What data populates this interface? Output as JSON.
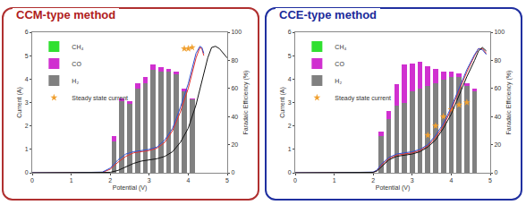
{
  "chart_data": [
    {
      "type": "bar",
      "title": "CCM-type method",
      "x_label": "Potential (V)",
      "y_label": "Current (A)",
      "y2_label": "Faradaic Efficiency (%)",
      "xlim": [
        0,
        5
      ],
      "xticks": [
        0,
        1,
        2,
        3,
        4,
        5
      ],
      "ylim": [
        0,
        6
      ],
      "yticks": [
        0,
        1,
        2,
        3,
        4,
        5,
        6
      ],
      "y2lim": [
        0,
        100
      ],
      "y2ticks": [
        0,
        20,
        40,
        60,
        80,
        100
      ],
      "stacked": true,
      "grid": false,
      "legend": "top-left",
      "series": [
        {
          "name": "Steady state current",
          "type": "scatter",
          "marker": "star",
          "color": "#f0a030",
          "x": [
            3.9,
            4.0,
            4.1
          ],
          "values": [
            5.3,
            5.3,
            5.35
          ]
        },
        {
          "type": "line",
          "color": "#e03030",
          "x": [
            0,
            1,
            1.8,
            2.0,
            2.2,
            2.4,
            2.6,
            2.8,
            3.0,
            3.2,
            3.4,
            3.6,
            3.8,
            4.0,
            4.1,
            4.2,
            4.3,
            4.35,
            4.4
          ],
          "values": [
            0,
            0,
            0.02,
            0.15,
            0.45,
            0.7,
            0.85,
            0.9,
            0.95,
            1.05,
            1.3,
            1.8,
            2.6,
            3.6,
            4.3,
            4.9,
            5.35,
            5.3,
            5.0
          ]
        },
        {
          "type": "line",
          "color": "#3050d0",
          "x": [
            0,
            1,
            1.8,
            2.0,
            2.2,
            2.4,
            2.6,
            2.8,
            3.0,
            3.2,
            3.4,
            3.6,
            3.8,
            4.0,
            4.1,
            4.2,
            4.3,
            4.35,
            4.4
          ],
          "values": [
            0,
            0,
            0.03,
            0.2,
            0.55,
            0.8,
            0.9,
            0.95,
            1.0,
            1.1,
            1.4,
            1.9,
            2.8,
            3.8,
            4.5,
            5.1,
            5.4,
            5.35,
            5.1
          ]
        },
        {
          "type": "line",
          "color": "#111111",
          "x": [
            0,
            1,
            2.0,
            2.2,
            2.4,
            2.6,
            2.8,
            3.0,
            3.2,
            3.4,
            3.6,
            3.8,
            4.0,
            4.2,
            4.4,
            4.5,
            4.6,
            4.7,
            4.8,
            5.0
          ],
          "values": [
            0,
            0,
            0.02,
            0.1,
            0.25,
            0.4,
            0.5,
            0.55,
            0.6,
            0.7,
            0.9,
            1.3,
            1.9,
            2.9,
            4.2,
            4.9,
            5.35,
            5.4,
            5.3,
            4.9
          ]
        },
        {
          "name": "H₂",
          "type": "bar",
          "axis": "y2",
          "color": "#808080",
          "x": [
            2.1,
            2.3,
            2.5,
            2.7,
            2.9,
            3.1,
            3.3,
            3.5,
            3.7,
            3.9,
            4.1
          ],
          "values": [
            22,
            51,
            49,
            60,
            64,
            73,
            72,
            72,
            70,
            58,
            52
          ]
        },
        {
          "name": "CO",
          "type": "bar",
          "axis": "y2",
          "color": "#d030d0",
          "x": [
            2.1,
            2.3,
            2.5,
            2.7,
            2.9,
            3.1,
            3.3,
            3.5,
            3.7,
            3.9,
            4.1
          ],
          "values": [
            4,
            2,
            2,
            4,
            4,
            4,
            3,
            2,
            2,
            2,
            1
          ]
        },
        {
          "name": "CH₄",
          "type": "bar",
          "axis": "y2",
          "color": "#30e030",
          "x": [
            2.1,
            2.3,
            2.5,
            2.7,
            2.9,
            3.1,
            3.3,
            3.5,
            3.7,
            3.9,
            4.1
          ],
          "values": [
            0,
            0,
            0,
            0,
            0,
            0,
            0,
            0,
            0,
            0,
            0
          ]
        }
      ]
    },
    {
      "type": "bar",
      "title": "CCE-type method",
      "x_label": "Potential (V)",
      "y_label": "Current (A)",
      "y2_label": "Faradaic Efficiency (%)",
      "xlim": [
        0,
        5
      ],
      "xticks": [
        0,
        1,
        2,
        3,
        4,
        5
      ],
      "ylim": [
        0,
        6
      ],
      "yticks": [
        0,
        1,
        2,
        3,
        4,
        5,
        6
      ],
      "y2lim": [
        0,
        100
      ],
      "y2ticks": [
        0,
        20,
        40,
        60,
        80,
        100
      ],
      "stacked": true,
      "grid": false,
      "legend": "top-left",
      "series": [
        {
          "name": "Steady state current",
          "type": "scatter",
          "marker": "star",
          "color": "#f0a030",
          "x": [
            3.4,
            3.6,
            3.8,
            4.0,
            4.2,
            4.4
          ],
          "values": [
            1.6,
            2.0,
            2.4,
            2.7,
            2.9,
            3.0
          ]
        },
        {
          "type": "line",
          "color": "#e03030",
          "x": [
            0,
            1,
            2.0,
            2.1,
            2.2,
            2.4,
            2.6,
            2.8,
            3.0,
            3.2,
            3.4,
            3.6,
            3.8,
            4.0,
            4.2,
            4.4,
            4.6,
            4.7,
            4.8,
            4.9
          ],
          "values": [
            0,
            0,
            0.02,
            0.1,
            0.3,
            0.6,
            0.75,
            0.8,
            0.85,
            0.95,
            1.15,
            1.5,
            2.0,
            2.7,
            3.5,
            4.3,
            5.0,
            5.3,
            5.3,
            5.1
          ]
        },
        {
          "type": "line",
          "color": "#3050d0",
          "x": [
            0,
            1,
            2.0,
            2.1,
            2.2,
            2.4,
            2.6,
            2.8,
            3.0,
            3.2,
            3.4,
            3.6,
            3.8,
            4.0,
            4.2,
            4.4,
            4.6,
            4.7,
            4.8,
            4.9
          ],
          "values": [
            0,
            0,
            0.03,
            0.12,
            0.35,
            0.65,
            0.8,
            0.85,
            0.9,
            1.0,
            1.2,
            1.6,
            2.1,
            2.8,
            3.6,
            4.4,
            5.05,
            5.3,
            5.25,
            5.05
          ]
        },
        {
          "type": "line",
          "color": "#111111",
          "x": [
            0,
            1,
            2.0,
            2.1,
            2.2,
            2.4,
            2.6,
            2.8,
            3.0,
            3.2,
            3.4,
            3.6,
            3.8,
            4.0,
            4.2,
            4.4,
            4.6,
            4.7,
            4.8,
            4.9
          ],
          "values": [
            0,
            0,
            0.02,
            0.08,
            0.25,
            0.55,
            0.7,
            0.75,
            0.8,
            0.9,
            1.1,
            1.4,
            1.9,
            2.5,
            3.3,
            4.1,
            4.8,
            5.2,
            5.35,
            5.2
          ]
        },
        {
          "name": "H₂",
          "type": "bar",
          "axis": "y2",
          "color": "#808080",
          "x": [
            2.2,
            2.4,
            2.6,
            2.8,
            3.0,
            3.2,
            3.4,
            3.6,
            3.8,
            4.0,
            4.2,
            4.4,
            4.6
          ],
          "values": [
            26,
            38,
            48,
            50,
            58,
            60,
            62,
            64,
            66,
            68,
            68,
            62,
            58
          ]
        },
        {
          "name": "CO",
          "type": "bar",
          "axis": "y2",
          "color": "#d030d0",
          "x": [
            2.2,
            2.4,
            2.6,
            2.8,
            3.0,
            3.2,
            3.4,
            3.6,
            3.8,
            4.0,
            4.2,
            4.4,
            4.6
          ],
          "values": [
            3,
            6,
            15,
            27,
            20,
            19,
            14,
            10,
            6,
            4,
            3,
            2,
            2
          ]
        },
        {
          "name": "CH₄",
          "type": "bar",
          "axis": "y2",
          "color": "#30e030",
          "x": [
            2.2,
            2.4,
            2.6,
            2.8,
            3.0,
            3.2,
            3.4,
            3.6,
            3.8,
            4.0,
            4.2,
            4.4,
            4.6
          ],
          "values": [
            0,
            0,
            0,
            0,
            0,
            0,
            0,
            0,
            0,
            0,
            0,
            0,
            0
          ]
        }
      ]
    }
  ]
}
